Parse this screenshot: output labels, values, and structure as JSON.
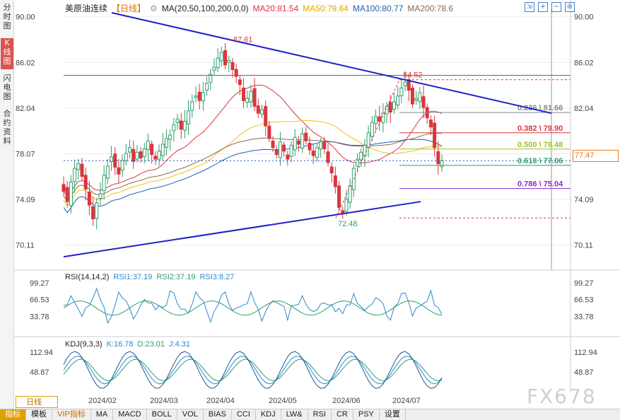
{
  "side_tabs": [
    {
      "label": "分时图",
      "active": false
    },
    {
      "label": "K线图",
      "active": true
    },
    {
      "label": "闪电图",
      "active": false
    },
    {
      "label": "合约资料",
      "active": false
    }
  ],
  "legend": {
    "instrument": "美原油连续",
    "period_badge": "【日线】",
    "ma_title": "MA(20,50,100,200,0,0)",
    "ma20": "MA20:81.54",
    "ma50": "MA50:79.64",
    "ma100": "MA100:80.77",
    "ma200": "MA200:78.6"
  },
  "colors": {
    "up": "#2e9e6a",
    "down": "#d9363e",
    "ma20": "#d9363e",
    "ma50": "#f0c020",
    "ma100": "#1f5fb0",
    "ma200": "#8a6a50",
    "trend": "#2020c8"
  },
  "price_axis": {
    "ticks": [
      "90.00",
      "86.02",
      "82.04",
      "78.07",
      "74.09",
      "70.11"
    ]
  },
  "annotations": {
    "high_label": "87.61",
    "low_label": "72.48",
    "swing_high_label": "84.52",
    "current_price": "77.47"
  },
  "fib_levels": [
    {
      "label": "0.236 \\ 81.66",
      "value": 81.66,
      "color": "#888888"
    },
    {
      "label": "0.382 \\ 79.90",
      "value": 79.9,
      "color": "#d9363e"
    },
    {
      "label": "0.500 \\ 78.48",
      "value": 78.48,
      "color": "#9bc02a"
    },
    {
      "label": "0.618 \\ 77.06",
      "value": 77.06,
      "color": "#2e9e6a"
    },
    {
      "label": "0.786 \\ 75.04",
      "value": 75.04,
      "color": "#8a2ad0"
    }
  ],
  "rsi": {
    "title": "RSI(14,14,2)",
    "rsi1": "RSI1:37.19",
    "rsi2": "RSI2:37.19",
    "rsi3": "RSI3:8.27",
    "ticks": [
      "99.27",
      "66.53",
      "33.78"
    ]
  },
  "kdj": {
    "title": "KDJ(9,3,3)",
    "k": "K:16.78",
    "d": "D:23.01",
    "j": "J:4.31",
    "ticks": [
      "112.94",
      "48.87"
    ]
  },
  "date_axis": [
    "2024/02",
    "2024/03",
    "2024/04",
    "2024/05",
    "2024/06",
    "2024/07"
  ],
  "period_tag": "日线",
  "bottom_tabs": [
    "指标",
    "模板",
    "VIP指标",
    "MA",
    "MACD",
    "BOLL",
    "VOL",
    "BIAS",
    "CCI",
    "KDJ",
    "LW&",
    "RSI",
    "CR",
    "PSY",
    "设置"
  ],
  "watermark": "FX678",
  "chart_data": {
    "type": "candlestick",
    "title": "美原油连续",
    "ylim": [
      68.8,
      90.6
    ],
    "y_ticks": [
      90.0,
      86.02,
      82.04,
      78.07,
      74.09,
      70.11
    ],
    "x_ticks": [
      "2024/02",
      "2024/03",
      "2024/04",
      "2024/05",
      "2024/06",
      "2024/07"
    ],
    "series_close": [
      74.8,
      73.9,
      75.6,
      76.8,
      77.2,
      76.1,
      75.0,
      73.6,
      72.4,
      73.8,
      74.6,
      76.2,
      77.0,
      77.8,
      76.9,
      76.3,
      77.5,
      78.1,
      78.6,
      77.4,
      78.2,
      77.7,
      78.5,
      79.2,
      78.0,
      77.6,
      78.3,
      78.9,
      79.4,
      79.7,
      80.6,
      81.1,
      80.2,
      80.9,
      81.8,
      82.6,
      83.1,
      82.7,
      83.4,
      84.2,
      85.0,
      85.6,
      86.4,
      86.9,
      85.8,
      86.2,
      85.4,
      84.8,
      84.1,
      82.7,
      82.9,
      83.5,
      82.2,
      81.6,
      81.9,
      80.5,
      79.4,
      78.6,
      78.0,
      79.1,
      78.3,
      77.6,
      78.8,
      79.5,
      78.9,
      79.8,
      79.2,
      78.4,
      77.9,
      78.6,
      79.1,
      78.5,
      77.3,
      76.4,
      75.2,
      73.4,
      72.9,
      74.1,
      75.3,
      76.8,
      77.6,
      78.2,
      78.8,
      79.9,
      80.8,
      81.3,
      80.9,
      81.6,
      82.2,
      81.7,
      82.6,
      83.1,
      83.8,
      84.3,
      83.6,
      82.4,
      82.9,
      83.4,
      82.1,
      81.2,
      80.4,
      78.6,
      77.2,
      77.47
    ]
  }
}
